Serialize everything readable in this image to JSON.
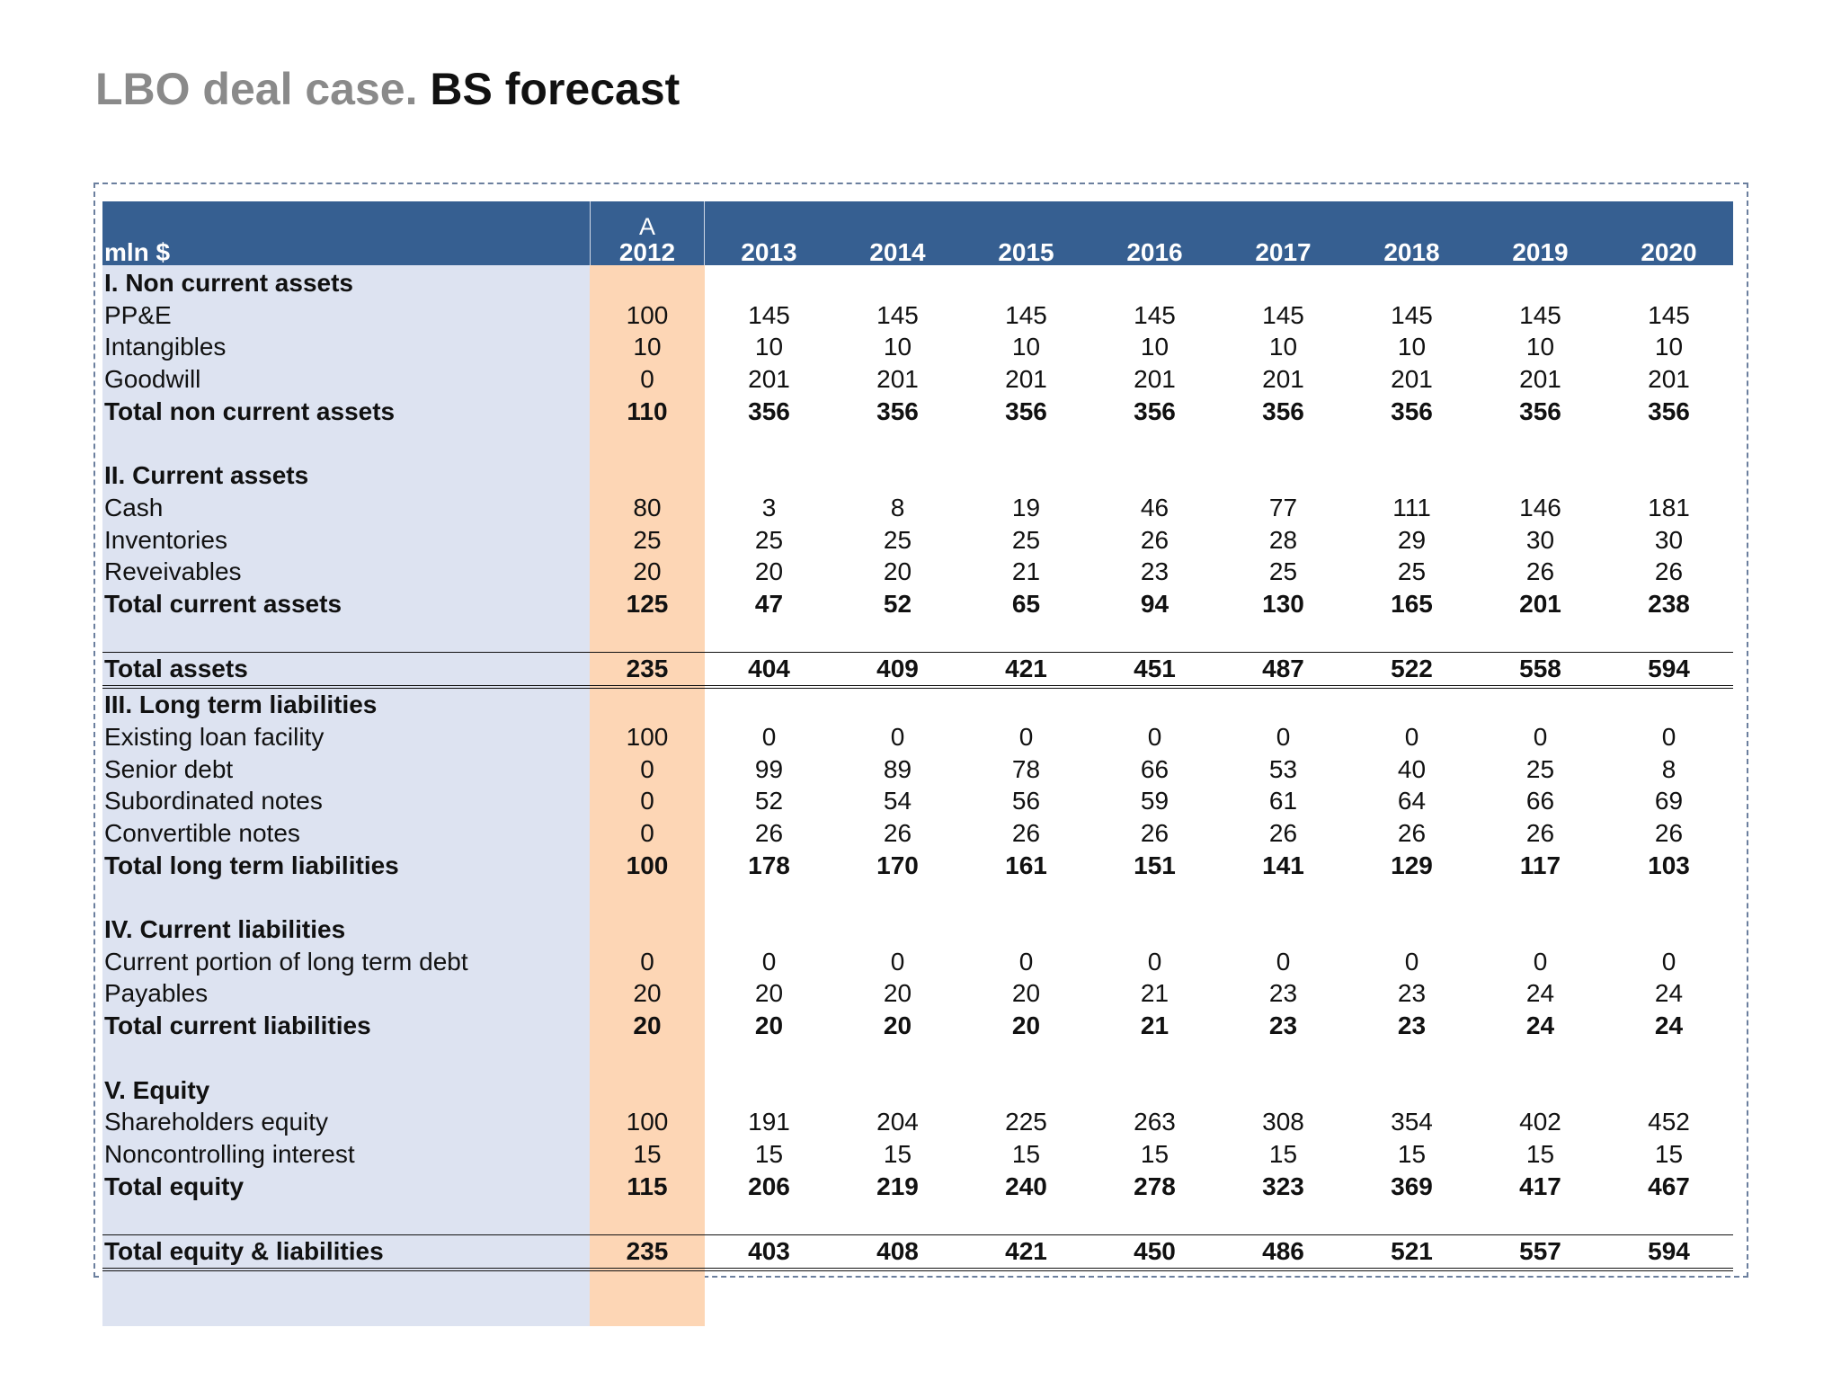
{
  "title": {
    "part1": "LBO deal case.",
    "part2": "BS forecast"
  },
  "table": {
    "unit_label": "mln $",
    "actual_marker": "A",
    "years": [
      "2012",
      "2013",
      "2014",
      "2015",
      "2016",
      "2017",
      "2018",
      "2019",
      "2020"
    ],
    "rows": [
      {
        "label": "I. Non current assets",
        "style": "section",
        "values": []
      },
      {
        "label": "PP&E",
        "style": "normal",
        "values": [
          "100",
          "145",
          "145",
          "145",
          "145",
          "145",
          "145",
          "145",
          "145"
        ]
      },
      {
        "label": "Intangibles",
        "style": "normal",
        "values": [
          "10",
          "10",
          "10",
          "10",
          "10",
          "10",
          "10",
          "10",
          "10"
        ]
      },
      {
        "label": "Goodwill",
        "style": "normal",
        "values": [
          "0",
          "201",
          "201",
          "201",
          "201",
          "201",
          "201",
          "201",
          "201"
        ]
      },
      {
        "label": "Total non current assets",
        "style": "bold",
        "values": [
          "110",
          "356",
          "356",
          "356",
          "356",
          "356",
          "356",
          "356",
          "356"
        ]
      },
      {
        "label": "",
        "style": "blank",
        "values": []
      },
      {
        "label": "II. Current assets",
        "style": "section",
        "values": []
      },
      {
        "label": "Cash",
        "style": "normal",
        "values": [
          "80",
          "3",
          "8",
          "19",
          "46",
          "77",
          "111",
          "146",
          "181"
        ]
      },
      {
        "label": "Inventories",
        "style": "normal",
        "values": [
          "25",
          "25",
          "25",
          "25",
          "26",
          "28",
          "29",
          "30",
          "30"
        ]
      },
      {
        "label": "Reveivables",
        "style": "normal",
        "values": [
          "20",
          "20",
          "20",
          "21",
          "23",
          "25",
          "25",
          "26",
          "26"
        ]
      },
      {
        "label": "Total current assets",
        "style": "bold",
        "values": [
          "125",
          "47",
          "52",
          "65",
          "94",
          "130",
          "165",
          "201",
          "238"
        ]
      },
      {
        "label": "",
        "style": "blank",
        "values": []
      },
      {
        "label": "Total assets",
        "style": "total",
        "values": [
          "235",
          "404",
          "409",
          "421",
          "451",
          "487",
          "522",
          "558",
          "594"
        ]
      },
      {
        "label": "III. Long term liabilities",
        "style": "section",
        "values": []
      },
      {
        "label": "Existing loan facility",
        "style": "normal",
        "values": [
          "100",
          "0",
          "0",
          "0",
          "0",
          "0",
          "0",
          "0",
          "0"
        ]
      },
      {
        "label": "Senior debt",
        "style": "normal",
        "values": [
          "0",
          "99",
          "89",
          "78",
          "66",
          "53",
          "40",
          "25",
          "8"
        ]
      },
      {
        "label": "Subordinated notes",
        "style": "normal",
        "values": [
          "0",
          "52",
          "54",
          "56",
          "59",
          "61",
          "64",
          "66",
          "69"
        ]
      },
      {
        "label": "Convertible notes",
        "style": "normal",
        "values": [
          "0",
          "26",
          "26",
          "26",
          "26",
          "26",
          "26",
          "26",
          "26"
        ]
      },
      {
        "label": "Total long term liabilities",
        "style": "bold",
        "values": [
          "100",
          "178",
          "170",
          "161",
          "151",
          "141",
          "129",
          "117",
          "103"
        ]
      },
      {
        "label": "",
        "style": "blank",
        "values": []
      },
      {
        "label": "IV. Current liabilities",
        "style": "section",
        "values": []
      },
      {
        "label": "Current portion of long term debt",
        "style": "normal",
        "values": [
          "0",
          "0",
          "0",
          "0",
          "0",
          "0",
          "0",
          "0",
          "0"
        ]
      },
      {
        "label": "Payables",
        "style": "normal",
        "values": [
          "20",
          "20",
          "20",
          "20",
          "21",
          "23",
          "23",
          "24",
          "24"
        ]
      },
      {
        "label": "Total current liabilities",
        "style": "bold",
        "values": [
          "20",
          "20",
          "20",
          "20",
          "21",
          "23",
          "23",
          "24",
          "24"
        ]
      },
      {
        "label": "",
        "style": "blank",
        "values": []
      },
      {
        "label": "V. Equity",
        "style": "section",
        "values": []
      },
      {
        "label": "Shareholders equity",
        "style": "normal",
        "values": [
          "100",
          "191",
          "204",
          "225",
          "263",
          "308",
          "354",
          "402",
          "452"
        ]
      },
      {
        "label": "Noncontrolling interest",
        "style": "normal",
        "values": [
          "15",
          "15",
          "15",
          "15",
          "15",
          "15",
          "15",
          "15",
          "15"
        ]
      },
      {
        "label": "Total equity",
        "style": "bold",
        "values": [
          "115",
          "206",
          "219",
          "240",
          "278",
          "323",
          "369",
          "417",
          "467"
        ]
      },
      {
        "label": "",
        "style": "blank",
        "values": []
      },
      {
        "label": "Total equity & liabilities",
        "style": "total",
        "values": [
          "235",
          "403",
          "408",
          "421",
          "450",
          "486",
          "521",
          "557",
          "594"
        ]
      }
    ]
  },
  "colors": {
    "header_bg": "#365f91",
    "label_col_bg": "#dde3f1",
    "actual_col_bg": "#fdd6b5",
    "title_gray": "#8a8a8a"
  }
}
